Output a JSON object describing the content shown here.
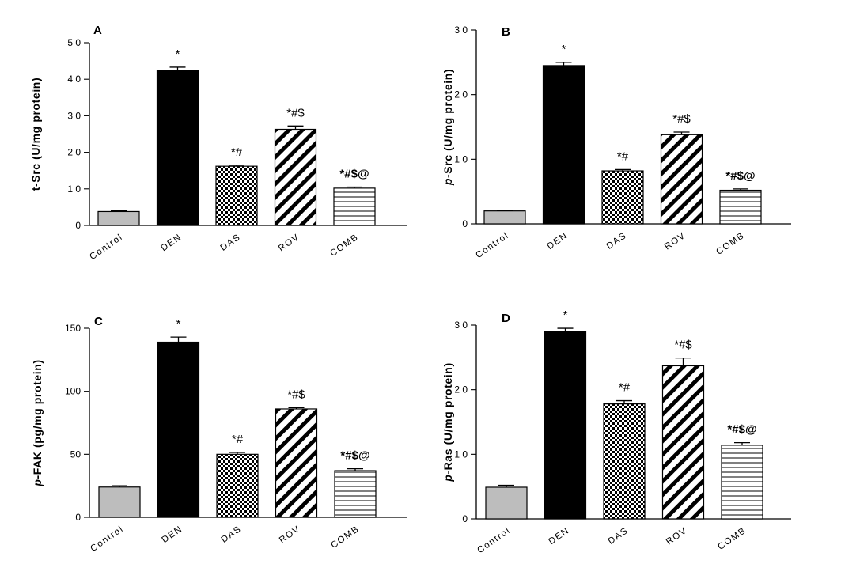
{
  "colors": {
    "control": "#bdbdbd",
    "den": "#000000",
    "axis": "#000000"
  },
  "patterns": [
    "solid-gray",
    "solid-black",
    "checkerboard",
    "diagonal-stripes",
    "horizontal-lines"
  ],
  "chart_data": [
    {
      "type": "bar",
      "panel": "A",
      "categories": [
        "Control",
        "DEN",
        "DAS",
        "ROV",
        "COMB"
      ],
      "values": [
        3.8,
        42.3,
        16.2,
        26.3,
        10.2
      ],
      "errors": [
        0.2,
        1.0,
        0.3,
        0.9,
        0.3
      ],
      "annotations": [
        "",
        "*",
        "*#",
        "*#$",
        "*#$@"
      ],
      "ylabel_main": "t-Src (U/mg protein)",
      "ylabel_italic": "",
      "ylim": [
        0,
        50
      ],
      "yticks": [
        0,
        10,
        20,
        30,
        40,
        50
      ],
      "ytick_labels": [
        "0",
        "1 0",
        "2 0",
        "3 0",
        "4 0",
        "5 0"
      ],
      "grid": false
    },
    {
      "type": "bar",
      "panel": "B",
      "categories": [
        "Control",
        "DEN",
        "DAS",
        "ROV",
        "COMB"
      ],
      "values": [
        2.0,
        24.5,
        8.2,
        13.8,
        5.2
      ],
      "errors": [
        0.1,
        0.5,
        0.2,
        0.4,
        0.2
      ],
      "annotations": [
        "",
        "*",
        "*#",
        "*#$",
        "*#$@"
      ],
      "ylabel_main": "-Src (U/mg protein)",
      "ylabel_italic": "p",
      "ylim": [
        0,
        30
      ],
      "yticks": [
        0,
        10,
        20,
        30
      ],
      "ytick_labels": [
        "0",
        "1 0",
        "2 0",
        "3 0"
      ],
      "grid": false
    },
    {
      "type": "bar",
      "panel": "C",
      "categories": [
        "Control",
        "DEN",
        "DAS",
        "ROV",
        "COMB"
      ],
      "values": [
        24,
        139,
        50,
        86,
        37
      ],
      "errors": [
        1,
        4,
        1.5,
        1,
        1.5
      ],
      "annotations": [
        "",
        "*",
        "*#",
        "*#$",
        "*#$@"
      ],
      "ylabel_main": "-FAK (pg/mg protein)",
      "ylabel_italic": "p",
      "ylim": [
        0,
        150
      ],
      "yticks": [
        0,
        50,
        100,
        150
      ],
      "ytick_labels": [
        "0",
        "50",
        "100",
        "150"
      ],
      "grid": false
    },
    {
      "type": "bar",
      "panel": "D",
      "categories": [
        "Control",
        "DEN",
        "DAS",
        "ROV",
        "COMB"
      ],
      "values": [
        4.9,
        29.0,
        17.8,
        23.7,
        11.4
      ],
      "errors": [
        0.3,
        0.5,
        0.5,
        1.2,
        0.4
      ],
      "annotations": [
        "",
        "*",
        "*#",
        "*#$",
        "*#$@"
      ],
      "ylabel_main": "-Ras (U/mg protein)",
      "ylabel_italic": "p",
      "ylim": [
        0,
        30
      ],
      "yticks": [
        0,
        10,
        20,
        30
      ],
      "ytick_labels": [
        "0",
        "1 0",
        "2 0",
        "3 0"
      ],
      "grid": false
    }
  ]
}
